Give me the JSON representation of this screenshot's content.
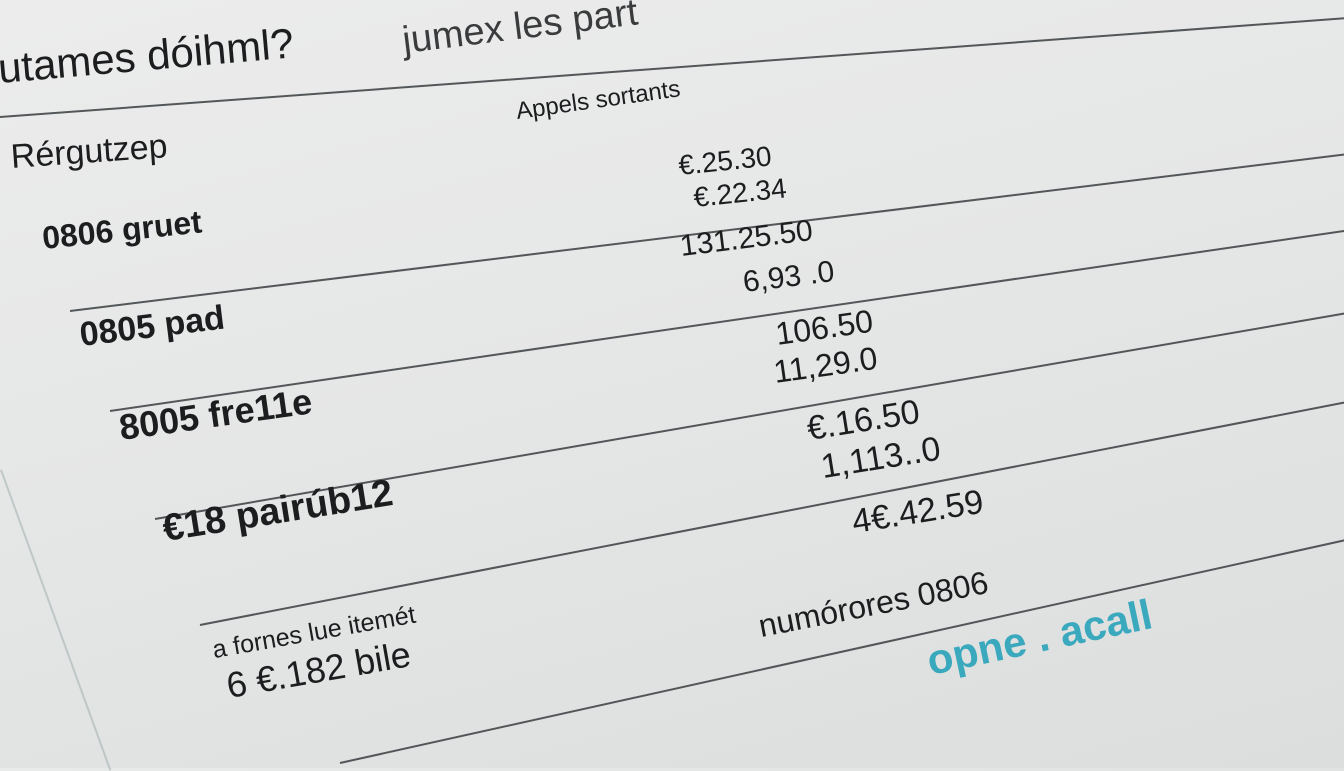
{
  "header": {
    "title": "utames dóihml?",
    "subtitle": "jumex les part",
    "column_heading": "Appels sortants",
    "section_label": "Rérgutzep"
  },
  "rows": [
    {
      "label": "0806 gruet",
      "values": [
        "€.25.30",
        "€.22.34"
      ]
    },
    {
      "label": "0805 pad",
      "values": [
        "131.25.50",
        "6,93 .0"
      ]
    },
    {
      "label": "8005 fre11e",
      "values": [
        "106.50",
        "11,29.0"
      ]
    },
    {
      "label": "€18 pairúb12",
      "values": [
        "€.16.50",
        "1,113..0"
      ]
    }
  ],
  "footer": {
    "note": "a fornes lue itemét",
    "amount": "6 €.182 bile",
    "total_value": "4€.42.59",
    "numbers_label": "numórores 0806",
    "brand": "opne . acall"
  },
  "colors": {
    "brand": "#3aa9bd",
    "text": "#1b1d1f"
  }
}
